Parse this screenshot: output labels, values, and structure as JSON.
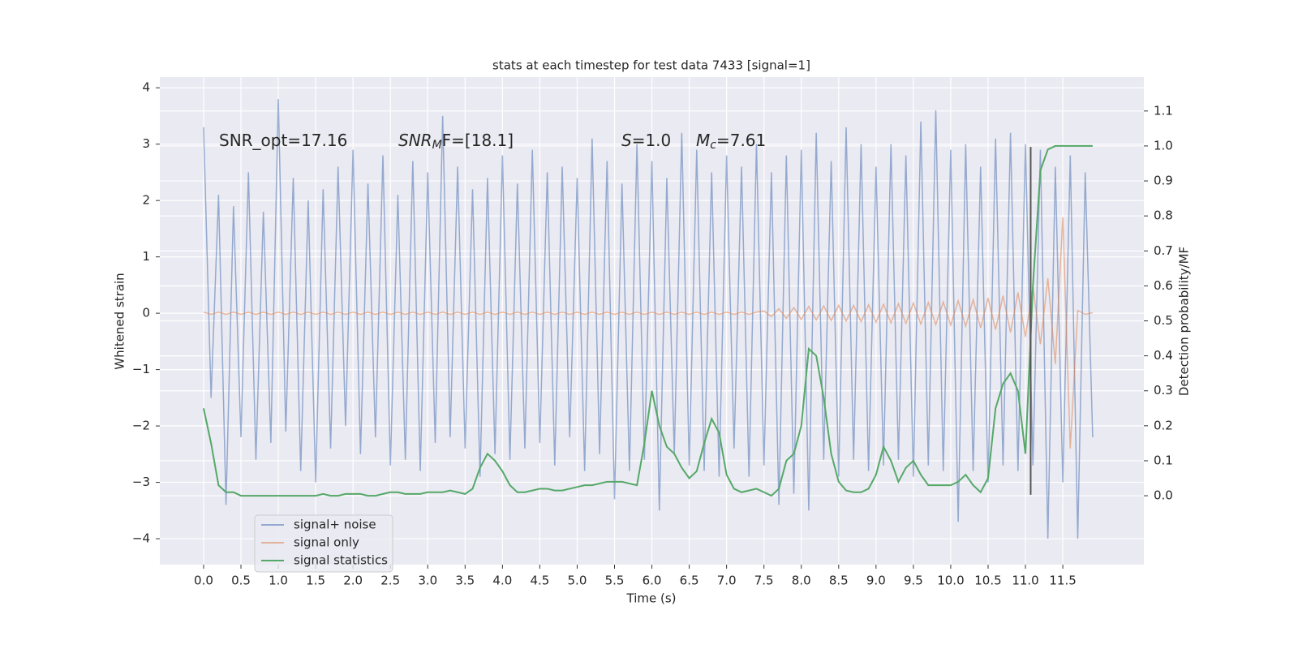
{
  "chart_data": {
    "type": "line",
    "title": "stats at each timestep for test data 7433 [signal=1]",
    "xlabel": "Time (s)",
    "ylabel": "Whitened strain",
    "y2label": "Detection probability/MF",
    "annotations": [
      {
        "base": "SNR_opt=17.16"
      },
      {
        "base": "SNR",
        "sub": "M",
        "tail": "F=[18.1]"
      },
      {
        "base": "S",
        "tail": "=1.0"
      },
      {
        "base": "M",
        "sub": "c",
        "tail": "=7.61"
      }
    ],
    "x": [
      0,
      0.1,
      0.2,
      0.3,
      0.4,
      0.5,
      0.6,
      0.7,
      0.8,
      0.9,
      1,
      1.1,
      1.2,
      1.3,
      1.4,
      1.5,
      1.6,
      1.7,
      1.8,
      1.9,
      2,
      2.1,
      2.2,
      2.3,
      2.4,
      2.5,
      2.6,
      2.7,
      2.8,
      2.9,
      3,
      3.1,
      3.2,
      3.3,
      3.4,
      3.5,
      3.6,
      3.7,
      3.8,
      3.9,
      4,
      4.1,
      4.2,
      4.3,
      4.4,
      4.5,
      4.6,
      4.7,
      4.8,
      4.9,
      5,
      5.1,
      5.2,
      5.3,
      5.4,
      5.5,
      5.6,
      5.7,
      5.8,
      5.9,
      6,
      6.1,
      6.2,
      6.3,
      6.4,
      6.5,
      6.6,
      6.7,
      6.8,
      6.9,
      7,
      7.1,
      7.2,
      7.3,
      7.4,
      7.5,
      7.6,
      7.7,
      7.8,
      7.9,
      8,
      8.1,
      8.2,
      8.3,
      8.4,
      8.5,
      8.6,
      8.7,
      8.8,
      8.9,
      9,
      9.1,
      9.2,
      9.3,
      9.4,
      9.5,
      9.6,
      9.7,
      9.8,
      9.9,
      10,
      10.1,
      10.2,
      10.3,
      10.4,
      10.5,
      10.6,
      10.7,
      10.8,
      10.9,
      11,
      11.1,
      11.2,
      11.3,
      11.4,
      11.5,
      11.6,
      11.7,
      11.8,
      11.9
    ],
    "series": [
      {
        "name": "signal+ noise",
        "color": "#4c72b0",
        "axis": "y",
        "values": [
          3.3,
          -1.5,
          2.1,
          -3.4,
          1.9,
          -2.2,
          2.5,
          -2.6,
          1.8,
          -2.3,
          3.8,
          -2.1,
          2.4,
          -2.8,
          2.0,
          -3.0,
          2.2,
          -2.4,
          2.6,
          -2.0,
          2.9,
          -2.5,
          2.3,
          -2.2,
          2.8,
          -2.7,
          2.1,
          -2.6,
          2.7,
          -2.8,
          2.5,
          -2.3,
          3.5,
          -2.2,
          2.6,
          -2.4,
          2.2,
          -2.9,
          2.4,
          -2.5,
          2.8,
          -2.6,
          2.3,
          -2.4,
          2.9,
          -2.3,
          2.5,
          -2.7,
          2.6,
          -2.2,
          2.4,
          -2.8,
          3.1,
          -2.5,
          2.7,
          -3.3,
          2.3,
          -2.8,
          3.0,
          -2.6,
          2.7,
          -3.5,
          2.4,
          -2.5,
          3.2,
          -2.7,
          2.9,
          -2.8,
          2.5,
          -2.9,
          2.8,
          -2.4,
          2.6,
          -2.9,
          3.0,
          -2.7,
          2.5,
          -3.4,
          2.8,
          -3.2,
          2.9,
          -3.5,
          3.2,
          -2.6,
          2.7,
          -2.9,
          3.3,
          -2.6,
          3.0,
          -2.8,
          2.6,
          -2.7,
          3.0,
          -2.6,
          2.8,
          -2.9,
          3.4,
          -2.7,
          3.6,
          -2.8,
          2.9,
          -3.7,
          3.0,
          -2.8,
          2.6,
          -3.0,
          3.1,
          -2.7,
          3.2,
          -2.8,
          3.0,
          -2.7,
          2.9,
          -4.0,
          2.6,
          -3.0,
          2.8,
          -4.0,
          2.5,
          -2.2
        ]
      },
      {
        "name": "signal only",
        "color": "#dd8452",
        "axis": "y",
        "values": [
          0.02,
          -0.02,
          0.02,
          -0.02,
          0.02,
          -0.02,
          0.02,
          -0.02,
          0.02,
          -0.02,
          0.02,
          -0.02,
          0.02,
          -0.02,
          0.02,
          -0.02,
          0.02,
          -0.02,
          0.02,
          -0.02,
          0.02,
          -0.02,
          0.02,
          -0.02,
          0.02,
          -0.02,
          0.02,
          -0.02,
          0.02,
          -0.02,
          0.02,
          -0.02,
          0.02,
          -0.02,
          0.02,
          -0.02,
          0.02,
          -0.02,
          0.02,
          -0.02,
          0.02,
          -0.02,
          0.02,
          -0.02,
          0.02,
          -0.02,
          0.02,
          -0.02,
          0.02,
          -0.02,
          0.02,
          -0.02,
          0.02,
          -0.02,
          0.02,
          -0.02,
          0.02,
          -0.02,
          0.02,
          -0.02,
          0.02,
          -0.02,
          0.02,
          -0.02,
          0.02,
          -0.02,
          0.02,
          -0.02,
          0.02,
          -0.02,
          0.02,
          -0.02,
          0.02,
          -0.02,
          0.02,
          0.04,
          -0.06,
          0.08,
          -0.09,
          0.1,
          -0.11,
          0.12,
          -0.12,
          0.13,
          -0.13,
          0.14,
          -0.14,
          0.14,
          -0.15,
          0.15,
          -0.16,
          0.16,
          -0.17,
          0.17,
          -0.18,
          0.18,
          -0.19,
          0.19,
          -0.2,
          0.2,
          -0.21,
          0.22,
          -0.23,
          0.24,
          -0.26,
          0.27,
          -0.29,
          0.31,
          -0.34,
          0.37,
          -0.42,
          0.47,
          -0.55,
          0.62,
          -0.9,
          1.7,
          -2.4,
          0.05,
          -0.02,
          0.01
        ]
      },
      {
        "name": "signal statistics",
        "color": "#55a868",
        "axis": "y2",
        "values": [
          0.25,
          0.15,
          0.03,
          0.01,
          0.01,
          0.0,
          0.0,
          0.0,
          0.0,
          0.0,
          0.0,
          0.0,
          0.0,
          0.0,
          0.0,
          0.0,
          0.005,
          0.0,
          0.0,
          0.005,
          0.005,
          0.005,
          0.0,
          0.0,
          0.005,
          0.01,
          0.01,
          0.005,
          0.005,
          0.005,
          0.01,
          0.01,
          0.01,
          0.015,
          0.01,
          0.005,
          0.02,
          0.08,
          0.12,
          0.1,
          0.07,
          0.03,
          0.01,
          0.01,
          0.015,
          0.02,
          0.02,
          0.015,
          0.015,
          0.02,
          0.025,
          0.03,
          0.03,
          0.035,
          0.04,
          0.04,
          0.04,
          0.035,
          0.03,
          0.15,
          0.3,
          0.2,
          0.14,
          0.12,
          0.08,
          0.05,
          0.07,
          0.15,
          0.22,
          0.18,
          0.06,
          0.02,
          0.01,
          0.015,
          0.02,
          0.01,
          0.0,
          0.02,
          0.1,
          0.12,
          0.2,
          0.42,
          0.4,
          0.28,
          0.12,
          0.04,
          0.015,
          0.01,
          0.01,
          0.02,
          0.06,
          0.14,
          0.1,
          0.04,
          0.08,
          0.1,
          0.06,
          0.03,
          0.03,
          0.03,
          0.03,
          0.04,
          0.06,
          0.03,
          0.01,
          0.05,
          0.25,
          0.32,
          0.35,
          0.3,
          0.12,
          0.6,
          0.93,
          0.99,
          1.0,
          1.0,
          1.0,
          1.0,
          1.0,
          1.0
        ]
      }
    ],
    "vline": {
      "x": 11.07,
      "y": [
        -3.22,
        2.95
      ],
      "color": "#555555"
    },
    "xlim": [
      -0.586,
      12.585
    ],
    "ylim": [
      -4.46,
      4.19
    ],
    "y2lim": [
      -0.197,
      1.197
    ],
    "xticks": [
      {
        "value": 0,
        "label": "0.0"
      },
      {
        "value": 0.5,
        "label": "0.5"
      },
      {
        "value": 1,
        "label": "1.0"
      },
      {
        "value": 1.5,
        "label": "1.5"
      },
      {
        "value": 2,
        "label": "2.0"
      },
      {
        "value": 2.5,
        "label": "2.5"
      },
      {
        "value": 3,
        "label": "3.0"
      },
      {
        "value": 3.5,
        "label": "3.5"
      },
      {
        "value": 4,
        "label": "4.0"
      },
      {
        "value": 4.5,
        "label": "4.5"
      },
      {
        "value": 5,
        "label": "5.0"
      },
      {
        "value": 5.5,
        "label": "5.5"
      },
      {
        "value": 6,
        "label": "6.0"
      },
      {
        "value": 6.5,
        "label": "6.5"
      },
      {
        "value": 7,
        "label": "7.0"
      },
      {
        "value": 7.5,
        "label": "7.5"
      },
      {
        "value": 8,
        "label": "8.0"
      },
      {
        "value": 8.5,
        "label": "8.5"
      },
      {
        "value": 9,
        "label": "9.0"
      },
      {
        "value": 9.5,
        "label": "9.5"
      },
      {
        "value": 10,
        "label": "10.0"
      },
      {
        "value": 10.5,
        "label": "10.5"
      },
      {
        "value": 11,
        "label": "11.0"
      },
      {
        "value": 11.5,
        "label": "11.5"
      }
    ],
    "yticks": [
      {
        "value": -4,
        "label": "−4"
      },
      {
        "value": -3,
        "label": "−3"
      },
      {
        "value": -2,
        "label": "−2"
      },
      {
        "value": -1,
        "label": "−1"
      },
      0,
      1,
      2,
      3,
      4
    ],
    "y2ticks": [
      {
        "value": 0,
        "label": "0.0"
      },
      {
        "value": 0.1,
        "label": "0.1"
      },
      {
        "value": 0.2,
        "label": "0.2"
      },
      {
        "value": 0.3,
        "label": "0.3"
      },
      {
        "value": 0.4,
        "label": "0.4"
      },
      {
        "value": 0.5,
        "label": "0.5"
      },
      {
        "value": 0.6,
        "label": "0.6"
      },
      {
        "value": 0.7,
        "label": "0.7"
      },
      {
        "value": 0.8,
        "label": "0.8"
      },
      {
        "value": 0.9,
        "label": "0.9"
      },
      {
        "value": 1,
        "label": "1.0"
      },
      {
        "value": 1.1,
        "label": "1.1"
      }
    ],
    "grid": true,
    "legend": "lower left",
    "background": "#eaeaf2"
  }
}
